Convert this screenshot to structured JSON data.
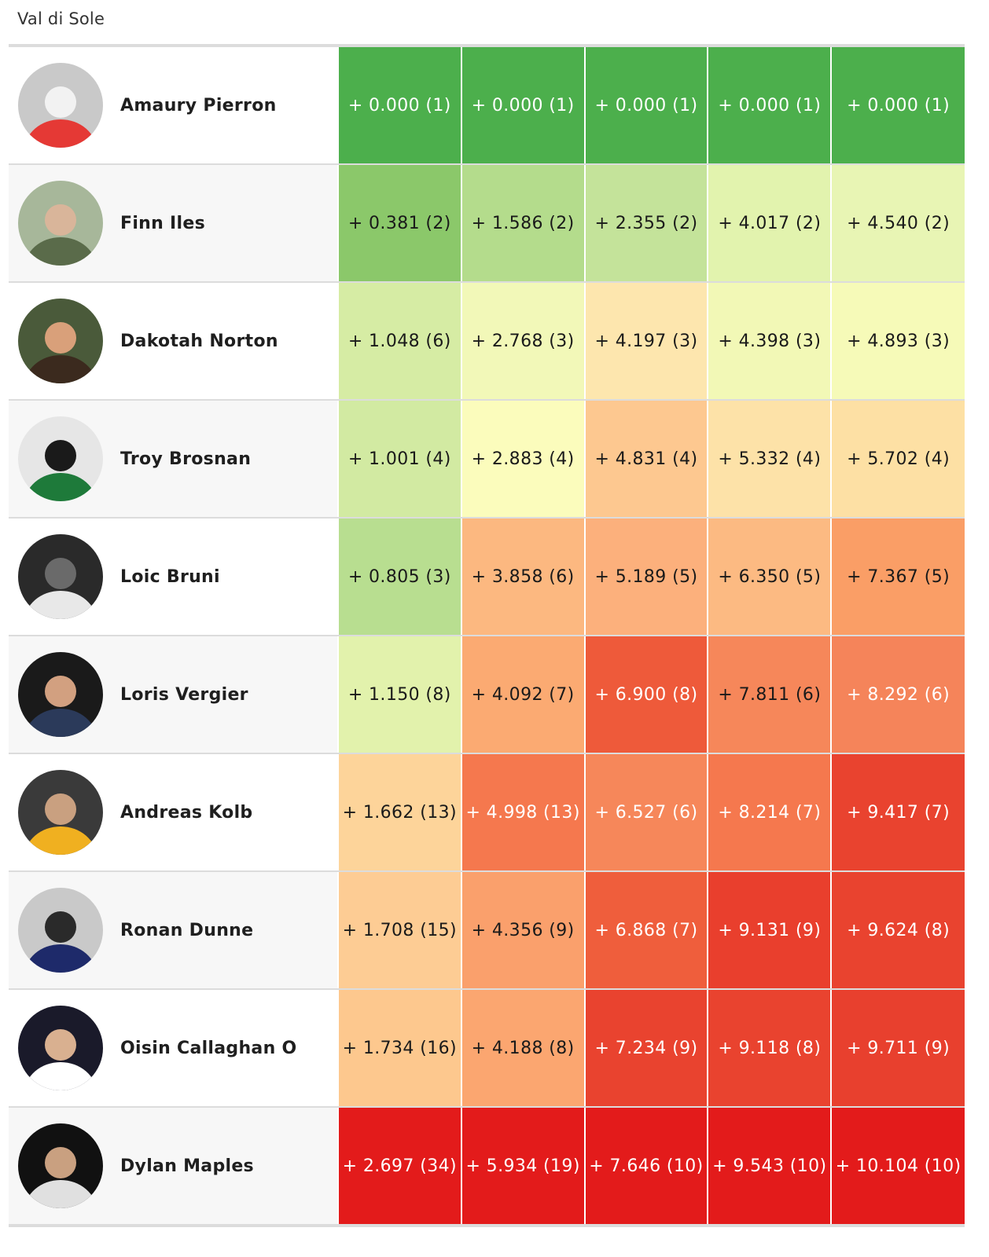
{
  "title": "Val di Sole",
  "rows": [
    {
      "name": "Amaury Pierron",
      "avatar_icon": "rider-photo-avatar",
      "avatar_colors": [
        "#c9c9c9",
        "#e53935",
        "#f2f2f2"
      ],
      "splits": [
        {
          "text": "+ 0.000 (1)",
          "bg": "#4caf4c",
          "fg": "#ffffff"
        },
        {
          "text": "+ 0.000 (1)",
          "bg": "#4caf4c",
          "fg": "#ffffff"
        },
        {
          "text": "+ 0.000 (1)",
          "bg": "#4caf4c",
          "fg": "#ffffff"
        },
        {
          "text": "+ 0.000 (1)",
          "bg": "#4caf4c",
          "fg": "#ffffff"
        },
        {
          "text": "+ 0.000 (1)",
          "bg": "#4caf4c",
          "fg": "#ffffff"
        }
      ]
    },
    {
      "name": "Finn Iles",
      "avatar_icon": "rider-photo-avatar",
      "avatar_colors": [
        "#a7b79a",
        "#5a6b4a",
        "#d9b59a"
      ],
      "splits": [
        {
          "text": "+ 0.381 (2)",
          "bg": "#8bc86a",
          "fg": "#1a1a1a"
        },
        {
          "text": "+ 1.586 (2)",
          "bg": "#b4dc8c",
          "fg": "#1a1a1a"
        },
        {
          "text": "+ 2.355 (2)",
          "bg": "#c4e39a",
          "fg": "#1a1a1a"
        },
        {
          "text": "+ 4.017 (2)",
          "bg": "#e2f3ae",
          "fg": "#1a1a1a"
        },
        {
          "text": "+ 4.540 (2)",
          "bg": "#e8f5b4",
          "fg": "#1a1a1a"
        }
      ]
    },
    {
      "name": "Dakotah Norton",
      "avatar_icon": "rider-photo-avatar",
      "avatar_colors": [
        "#4a5a3a",
        "#3b2a1e",
        "#d9a07a"
      ],
      "splits": [
        {
          "text": "+ 1.048 (6)",
          "bg": "#d6eca4",
          "fg": "#1a1a1a"
        },
        {
          "text": "+ 2.768 (3)",
          "bg": "#f2f8b8",
          "fg": "#1a1a1a"
        },
        {
          "text": "+ 4.197 (3)",
          "bg": "#fde6ae",
          "fg": "#1a1a1a"
        },
        {
          "text": "+ 4.398 (3)",
          "bg": "#f2f8b6",
          "fg": "#1a1a1a"
        },
        {
          "text": "+ 4.893 (3)",
          "bg": "#f6fab8",
          "fg": "#1a1a1a"
        }
      ]
    },
    {
      "name": "Troy Brosnan",
      "avatar_icon": "rider-photo-avatar",
      "avatar_colors": [
        "#e6e6e6",
        "#1e7a3a",
        "#1a1a1a"
      ],
      "splits": [
        {
          "text": "+ 1.001 (4)",
          "bg": "#d2eaa2",
          "fg": "#1a1a1a"
        },
        {
          "text": "+ 2.883 (4)",
          "bg": "#fbfcbc",
          "fg": "#1a1a1a"
        },
        {
          "text": "+ 4.831 (4)",
          "bg": "#fdc890",
          "fg": "#1a1a1a"
        },
        {
          "text": "+ 5.332 (4)",
          "bg": "#fde2a8",
          "fg": "#1a1a1a"
        },
        {
          "text": "+ 5.702 (4)",
          "bg": "#fde0a4",
          "fg": "#1a1a1a"
        }
      ]
    },
    {
      "name": "Loic Bruni",
      "avatar_icon": "rider-photo-avatar",
      "avatar_colors": [
        "#2a2a2a",
        "#e8e8e8",
        "#6a6a6a"
      ],
      "splits": [
        {
          "text": "+ 0.805 (3)",
          "bg": "#b8de90",
          "fg": "#1a1a1a"
        },
        {
          "text": "+ 3.858 (6)",
          "bg": "#fcb880",
          "fg": "#1a1a1a"
        },
        {
          "text": "+ 5.189 (5)",
          "bg": "#fcb07c",
          "fg": "#1a1a1a"
        },
        {
          "text": "+ 6.350 (5)",
          "bg": "#fcba82",
          "fg": "#1a1a1a"
        },
        {
          "text": "+ 7.367 (5)",
          "bg": "#fa9e66",
          "fg": "#1a1a1a"
        }
      ]
    },
    {
      "name": "Loris Vergier",
      "avatar_icon": "rider-photo-avatar",
      "avatar_colors": [
        "#1a1a1a",
        "#2b3a5a",
        "#d2a080"
      ],
      "splits": [
        {
          "text": "+ 1.150 (8)",
          "bg": "#e2f2ac",
          "fg": "#1a1a1a"
        },
        {
          "text": "+ 4.092 (7)",
          "bg": "#fbaa72",
          "fg": "#1a1a1a"
        },
        {
          "text": "+ 6.900 (8)",
          "bg": "#ee5a3a",
          "fg": "#ffffff"
        },
        {
          "text": "+ 7.811 (6)",
          "bg": "#f6875a",
          "fg": "#1a1a1a"
        },
        {
          "text": "+ 8.292 (6)",
          "bg": "#f5845a",
          "fg": "#ffffff"
        }
      ]
    },
    {
      "name": "Andreas Kolb",
      "avatar_icon": "rider-photo-avatar",
      "avatar_colors": [
        "#3a3a3a",
        "#f0b020",
        "#c9a080"
      ],
      "splits": [
        {
          "text": "+ 1.662 (13)",
          "bg": "#fdd49a",
          "fg": "#1a1a1a"
        },
        {
          "text": "+ 4.998 (13)",
          "bg": "#f5784e",
          "fg": "#ffffff"
        },
        {
          "text": "+ 6.527 (6)",
          "bg": "#f6875a",
          "fg": "#ffffff"
        },
        {
          "text": "+ 8.214 (7)",
          "bg": "#f5784e",
          "fg": "#ffffff"
        },
        {
          "text": "+ 9.417 (7)",
          "bg": "#e9432f",
          "fg": "#ffffff"
        }
      ]
    },
    {
      "name": "Ronan Dunne",
      "avatar_icon": "rider-photo-avatar",
      "avatar_colors": [
        "#c9c9c9",
        "#1e2a6a",
        "#2a2a2a"
      ],
      "splits": [
        {
          "text": "+ 1.708 (15)",
          "bg": "#fdcc94",
          "fg": "#1a1a1a"
        },
        {
          "text": "+ 4.356 (9)",
          "bg": "#faa06c",
          "fg": "#1a1a1a"
        },
        {
          "text": "+ 6.868 (7)",
          "bg": "#ef5e3c",
          "fg": "#ffffff"
        },
        {
          "text": "+ 9.131 (9)",
          "bg": "#e93f2d",
          "fg": "#ffffff"
        },
        {
          "text": "+ 9.624 (8)",
          "bg": "#e9432f",
          "fg": "#ffffff"
        }
      ]
    },
    {
      "name": "Oisin Callaghan O",
      "avatar_icon": "rider-photo-avatar",
      "avatar_colors": [
        "#1a1a2a",
        "#ffffff",
        "#d9b090"
      ],
      "splits": [
        {
          "text": "+ 1.734 (16)",
          "bg": "#fdc88e",
          "fg": "#1a1a1a"
        },
        {
          "text": "+ 4.188 (8)",
          "bg": "#fba670",
          "fg": "#1a1a1a"
        },
        {
          "text": "+ 7.234 (9)",
          "bg": "#e9432f",
          "fg": "#ffffff"
        },
        {
          "text": "+ 9.118 (8)",
          "bg": "#e9432f",
          "fg": "#ffffff"
        },
        {
          "text": "+ 9.711 (9)",
          "bg": "#e8402e",
          "fg": "#ffffff"
        }
      ]
    },
    {
      "name": "Dylan Maples",
      "avatar_icon": "rider-photo-avatar",
      "avatar_colors": [
        "#111111",
        "#e0e0e0",
        "#c9a080"
      ],
      "splits": [
        {
          "text": "+ 2.697 (34)",
          "bg": "#e31b1b",
          "fg": "#ffffff"
        },
        {
          "text": "+ 5.934 (19)",
          "bg": "#e31b1b",
          "fg": "#ffffff"
        },
        {
          "text": "+ 7.646 (10)",
          "bg": "#e31b1b",
          "fg": "#ffffff"
        },
        {
          "text": "+ 9.543 (10)",
          "bg": "#e31b1b",
          "fg": "#ffffff"
        },
        {
          "text": "+ 10.104 (10)",
          "bg": "#e31b1b",
          "fg": "#ffffff"
        }
      ]
    }
  ]
}
